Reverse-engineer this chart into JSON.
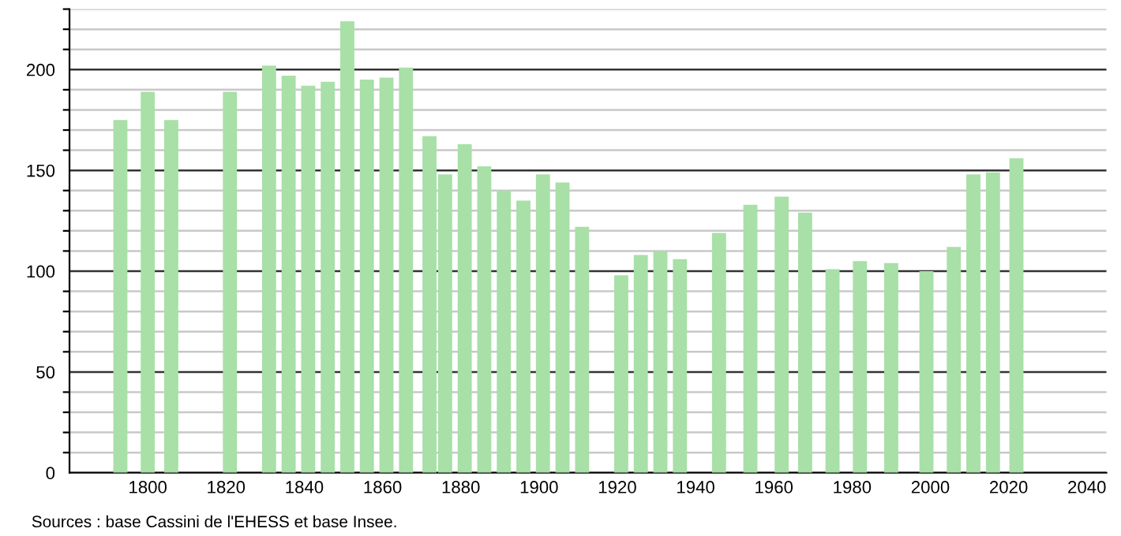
{
  "chart_data": {
    "type": "bar",
    "x": [
      1793,
      1800,
      1806,
      1821,
      1831,
      1836,
      1841,
      1846,
      1851,
      1856,
      1861,
      1866,
      1872,
      1876,
      1881,
      1886,
      1891,
      1896,
      1901,
      1906,
      1911,
      1921,
      1926,
      1931,
      1936,
      1946,
      1954,
      1962,
      1968,
      1975,
      1982,
      1990,
      1999,
      2006,
      2011,
      2016,
      2022
    ],
    "values": [
      175,
      189,
      175,
      189,
      202,
      197,
      192,
      194,
      224,
      195,
      196,
      201,
      167,
      148,
      163,
      152,
      140,
      135,
      148,
      144,
      122,
      98,
      108,
      110,
      106,
      119,
      133,
      137,
      129,
      101,
      105,
      104,
      100,
      112,
      148,
      149,
      156
    ],
    "color": "#a8e0a8",
    "xlim": [
      1780,
      2045
    ],
    "xticks": [
      1800,
      1820,
      1840,
      1860,
      1880,
      1900,
      1920,
      1940,
      1960,
      1980,
      2000,
      2020,
      2040
    ],
    "ylim": [
      0,
      230
    ],
    "yticks": [
      0,
      {
        "value": 10,
        "label": null
      },
      {
        "value": 20,
        "label": null
      },
      {
        "value": 30,
        "label": null
      },
      {
        "value": 40,
        "label": null
      },
      50,
      {
        "value": 60,
        "label": null
      },
      {
        "value": 70,
        "label": null
      },
      {
        "value": 80,
        "label": null
      },
      {
        "value": 90,
        "label": null
      },
      100,
      {
        "value": 110,
        "label": null
      },
      {
        "value": 120,
        "label": null
      },
      {
        "value": 130,
        "label": null
      },
      {
        "value": 140,
        "label": null
      },
      150,
      {
        "value": 160,
        "label": null
      },
      {
        "value": 170,
        "label": null
      },
      {
        "value": 180,
        "label": null
      },
      {
        "value": 190,
        "label": null
      },
      200,
      {
        "value": 210,
        "label": null
      },
      {
        "value": 220,
        "label": null
      },
      {
        "value": 230,
        "label": null
      }
    ],
    "grid": "y",
    "annotations": [
      "Sources : base Cassini de l'EHESS et base Insee."
    ]
  }
}
